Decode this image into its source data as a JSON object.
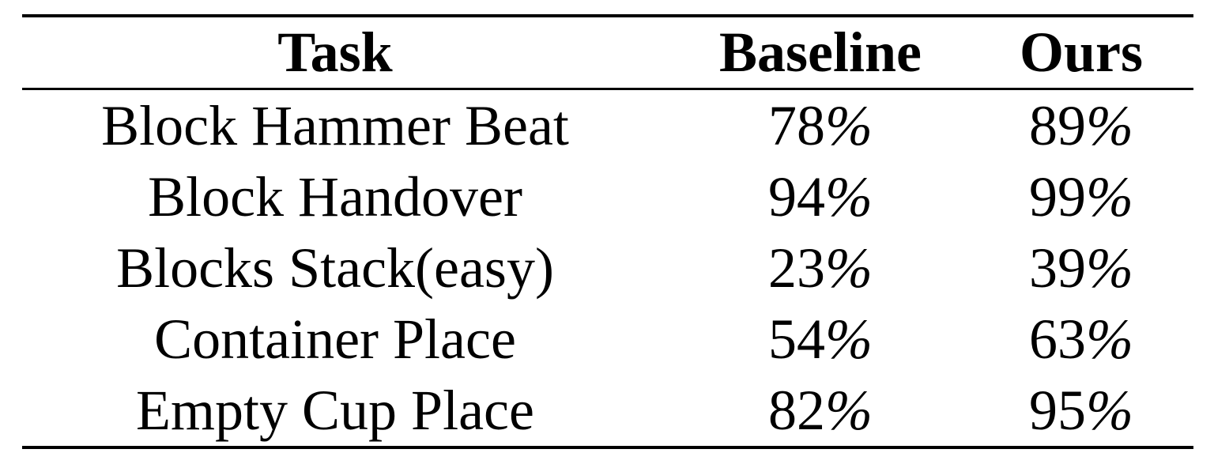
{
  "table": {
    "columns": [
      "Task",
      "Baseline",
      "Ours"
    ],
    "rows": [
      {
        "task": "Block Hammer Beat",
        "baseline": "78",
        "ours": "89"
      },
      {
        "task": "Block Handover",
        "baseline": "94",
        "ours": "99"
      },
      {
        "task": "Blocks Stack(easy)",
        "baseline": "23",
        "ours": "39"
      },
      {
        "task": "Container Place",
        "baseline": "54",
        "ours": "63"
      },
      {
        "task": "Empty Cup Place",
        "baseline": "82",
        "ours": "95"
      }
    ],
    "percent_sign": "%"
  }
}
